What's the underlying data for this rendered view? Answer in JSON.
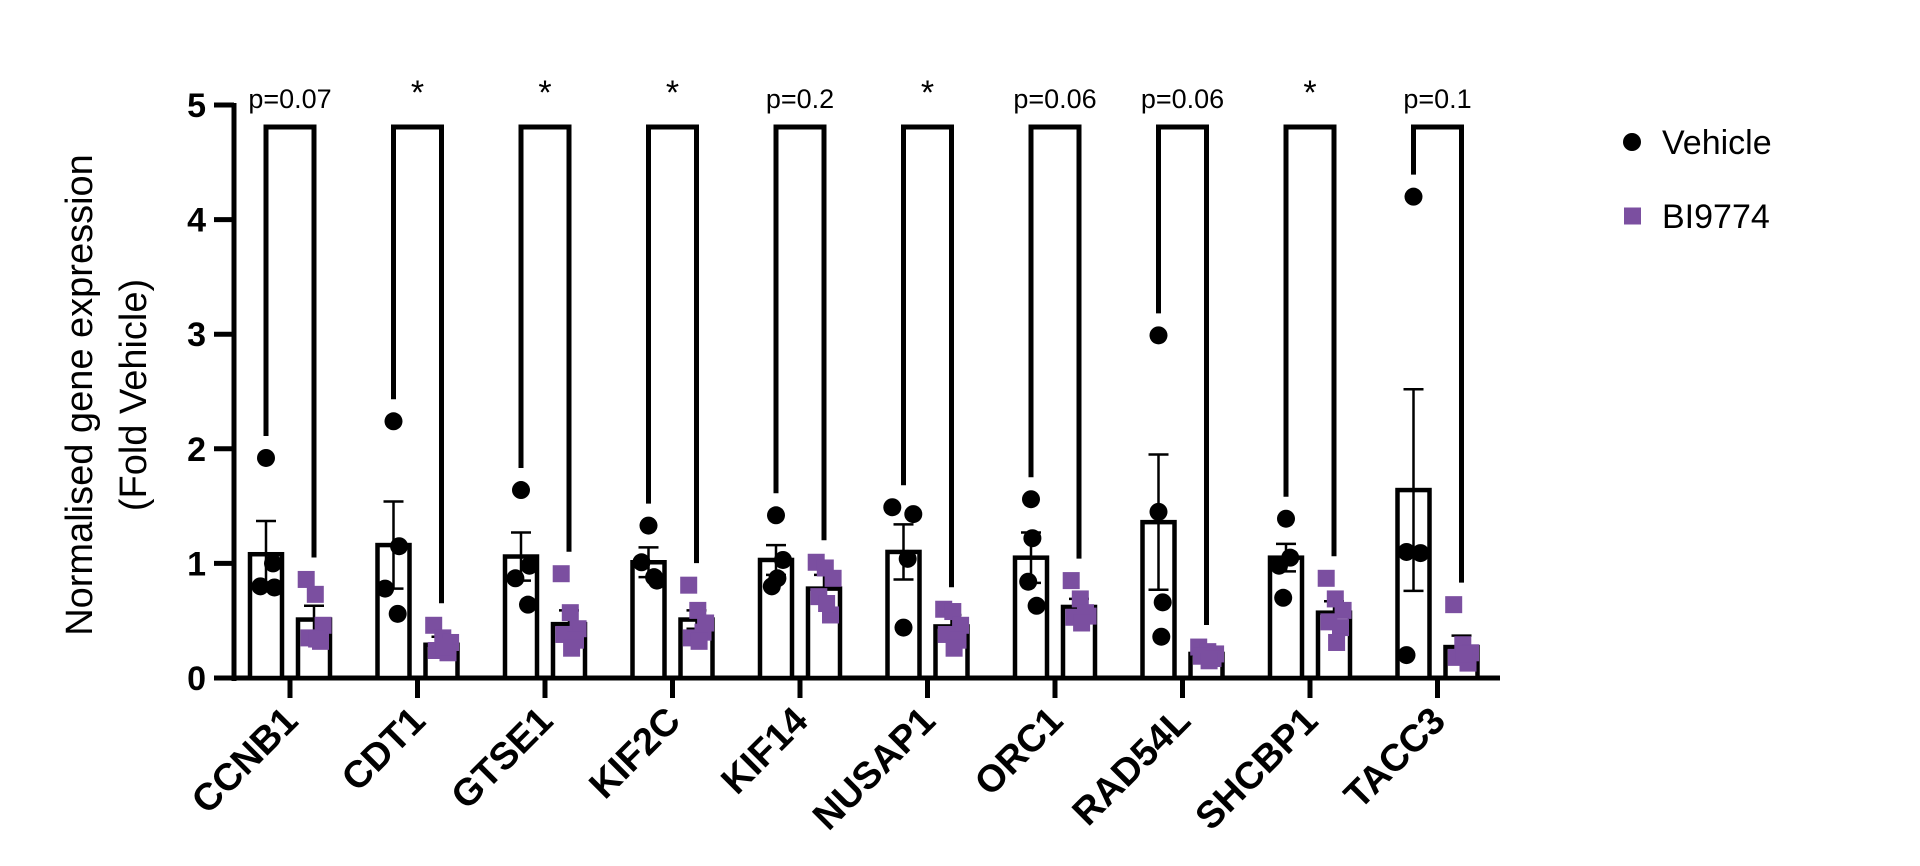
{
  "chart_data": {
    "type": "bar",
    "ylabel_line1": "Normalised gene expression",
    "ylabel_line2": "(Fold Vehicle)",
    "ylim": [
      0,
      5
    ],
    "yticks": [
      "0",
      "1",
      "2",
      "3",
      "4",
      "5"
    ],
    "legend_position": "top-right",
    "categories": [
      "CCNB1",
      "CDT1",
      "GTSE1",
      "KIF2C",
      "KIF14",
      "NUSAP1",
      "ORC1",
      "RAD54L",
      "SHCBP1",
      "TACC3"
    ],
    "significance": [
      "p=0.07",
      "*",
      "*",
      "*",
      "p=0.2",
      "*",
      "p=0.06",
      "p=0.06",
      "*",
      "p=0.1"
    ],
    "series": [
      {
        "name": "Vehicle",
        "color": "#000000",
        "marker": "circle",
        "means": [
          1.08,
          1.16,
          1.06,
          1.01,
          1.03,
          1.1,
          1.05,
          1.36,
          1.05,
          1.64
        ],
        "sem": [
          0.29,
          0.38,
          0.21,
          0.13,
          0.13,
          0.24,
          0.22,
          0.59,
          0.12,
          0.88
        ],
        "points": [
          [
            1.92,
            1.0,
            0.8,
            0.79
          ],
          [
            2.24,
            1.15,
            0.78,
            0.56
          ],
          [
            1.64,
            0.98,
            0.87,
            0.64
          ],
          [
            1.33,
            1.01,
            0.88,
            0.85
          ],
          [
            1.42,
            1.03,
            0.87,
            0.8
          ],
          [
            1.49,
            1.43,
            1.04,
            0.44
          ],
          [
            1.56,
            1.22,
            0.84,
            0.63
          ],
          [
            2.99,
            1.45,
            0.66,
            0.36
          ],
          [
            1.39,
            1.05,
            0.98,
            0.7
          ],
          [
            4.2,
            1.1,
            1.09,
            0.2
          ]
        ]
      },
      {
        "name": "BI9774",
        "color": "#7b4fa0",
        "marker": "square",
        "means": [
          0.51,
          0.29,
          0.47,
          0.51,
          0.78,
          0.45,
          0.62,
          0.21,
          0.57,
          0.27
        ],
        "sem": [
          0.12,
          0.07,
          0.12,
          0.08,
          0.12,
          0.1,
          0.07,
          0.04,
          0.1,
          0.1
        ],
        "points": [
          [
            0.86,
            0.73,
            0.46,
            0.35,
            0.32,
            0.34
          ],
          [
            0.46,
            0.35,
            0.31,
            0.24,
            0.22,
            0.27
          ],
          [
            0.91,
            0.57,
            0.43,
            0.38,
            0.33,
            0.26
          ],
          [
            0.81,
            0.59,
            0.48,
            0.35,
            0.4,
            0.32
          ],
          [
            1.01,
            0.96,
            0.87,
            0.71,
            0.55,
            0.65
          ],
          [
            0.6,
            0.58,
            0.46,
            0.38,
            0.33,
            0.26
          ],
          [
            0.85,
            0.69,
            0.54,
            0.53,
            0.57,
            0.48
          ],
          [
            0.27,
            0.23,
            0.21,
            0.19,
            0.17,
            0.15
          ],
          [
            0.87,
            0.69,
            0.59,
            0.49,
            0.44,
            0.31
          ],
          [
            0.64,
            0.29,
            0.22,
            0.18,
            0.13,
            0.21
          ]
        ]
      }
    ]
  }
}
